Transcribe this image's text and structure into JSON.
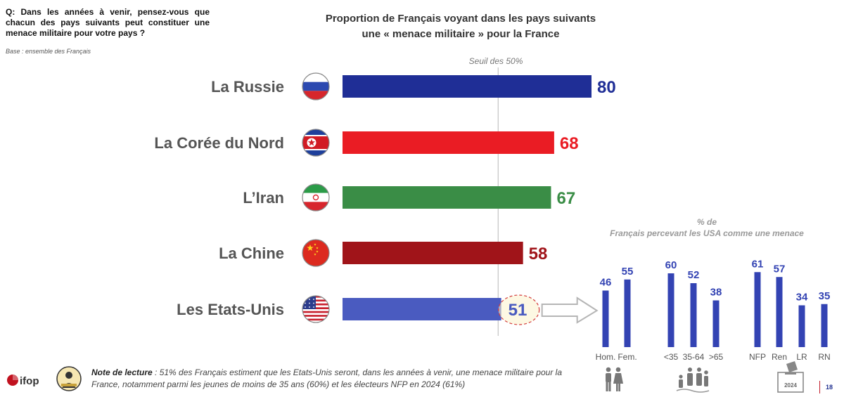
{
  "question": "Q: Dans les années à venir, pensez-vous que chacun des pays suivants peut constituer une menace militaire pour votre pays ?",
  "base": "Base : ensemble des Français",
  "colors": {
    "russia": "#1f2e96",
    "north_korea": "#ea1c24",
    "iran": "#3a8d46",
    "china": "#a01419",
    "usa": "#4a5bc0",
    "sub_bars": "#3343b3",
    "sub_labels": "#3343b3",
    "axis_labels": "#555555"
  },
  "chart_data": [
    {
      "type": "bar",
      "orientation": "horizontal",
      "title": "Proportion de Français voyant dans les pays suivants une « menace militaire » pour la France",
      "title_lines": [
        "Proportion de Français voyant dans les pays suivants",
        "une « menace militaire » pour la France"
      ],
      "categories": [
        "La Russie",
        "La Corée du Nord",
        "L’Iran",
        "La Chine",
        "Les Etats-Unis"
      ],
      "values": [
        80,
        68,
        67,
        58,
        51
      ],
      "value_labels": [
        "80",
        "68",
        "67",
        "58",
        "51"
      ],
      "flags": [
        "russia-flag-icon",
        "north-korea-flag-icon",
        "iran-flag-icon",
        "china-flag-icon",
        "usa-flag-icon"
      ],
      "bar_colors": [
        "#1f2e96",
        "#ea1c24",
        "#3a8d46",
        "#a01419",
        "#4a5bc0"
      ],
      "reference_line": {
        "value": 50,
        "label": "Seuil des 50%"
      },
      "xlim": [
        0,
        80
      ],
      "grid": false,
      "legend": "none"
    },
    {
      "type": "bar",
      "orientation": "vertical",
      "title": "% de Français percevant les USA comme une menace",
      "title_lines": [
        "% de",
        "Français percevant les USA comme une menace"
      ],
      "groups": [
        {
          "name": "gender",
          "categories": [
            "Hom.",
            "Fem."
          ],
          "values": [
            46,
            55
          ]
        },
        {
          "name": "age",
          "categories": [
            "<35",
            "35-64",
            ">65"
          ],
          "values": [
            60,
            52,
            38
          ]
        },
        {
          "name": "vote2024",
          "categories": [
            "NFP",
            "Ren",
            "LR",
            "RN"
          ],
          "values": [
            61,
            57,
            34,
            35
          ]
        }
      ],
      "ylim": [
        0,
        70
      ],
      "grid": false,
      "legend": "none"
    }
  ],
  "icons": {
    "gender": "man-woman-icon",
    "age": "family-generations-icon",
    "vote": "ballot-box-icon",
    "arrow": "right-arrow-icon"
  },
  "vote_year": "2024",
  "note": {
    "prefix": "Note de lecture",
    "text": " : 51% des Français estiment que les Etats-Unis seront, dans les années à venir, une menace militaire pour la France, notamment parmi les jeunes de moins de 35 ans (60%) et les électeurs NFP en 2024 (61%)"
  },
  "logos": {
    "ifop": "ifop",
    "badge": "institute-badge-logo"
  },
  "page_number": "18"
}
